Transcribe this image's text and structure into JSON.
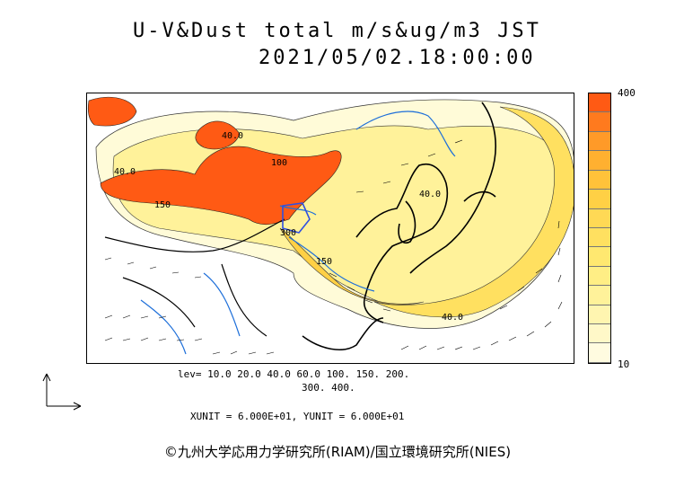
{
  "title": {
    "line1": "U-V&Dust total m/s&ug/m3 JST",
    "line2": "2021/05/02.18:00:00"
  },
  "colorbar": {
    "max_label": "400",
    "min_label": "10",
    "colors": [
      "#ff5a14",
      "#ff7a1e",
      "#ff9a28",
      "#ffb030",
      "#ffc23a",
      "#ffd045",
      "#ffd955",
      "#ffe060",
      "#ffe870",
      "#ffee85",
      "#fff29a",
      "#fff5b0",
      "#fff8c8",
      "#fffbe0"
    ]
  },
  "contour_labels": [
    "40.0",
    "100",
    "150",
    "40.0",
    "150",
    "40.0",
    "300",
    "40.0"
  ],
  "levels": {
    "line1": "lev= 10.0 20.0 40.0 60.0 100. 150. 200.",
    "line2": "300. 400."
  },
  "units": "XUNIT = 6.000E+01, YUNIT = 6.000E+01",
  "credit": "©九州大学応用力学研究所(RIAM)/国立環境研究所(NIES)"
}
